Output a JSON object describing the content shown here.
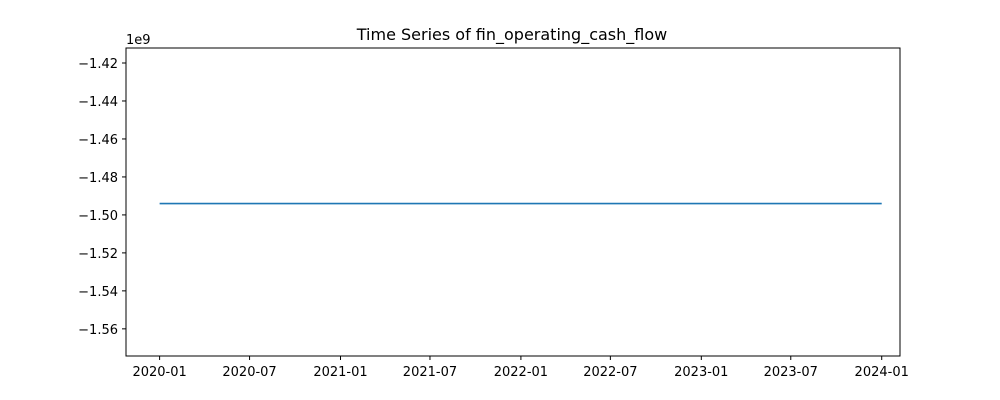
{
  "chart_data": {
    "type": "line",
    "title": "Time Series of fin_operating_cash_flow",
    "xlabel": "",
    "ylabel": "",
    "y_offset_text": "1e9",
    "xlim": [
      "2019-10-25",
      "2024-02-07"
    ],
    "ylim": [
      -1574300000.0,
      -1412100000.0
    ],
    "x_ticks": [
      {
        "value": "2020-01-01",
        "label": "2020-01"
      },
      {
        "value": "2020-07-01",
        "label": "2020-07"
      },
      {
        "value": "2021-01-01",
        "label": "2021-01"
      },
      {
        "value": "2021-07-01",
        "label": "2021-07"
      },
      {
        "value": "2022-01-01",
        "label": "2022-01"
      },
      {
        "value": "2022-07-01",
        "label": "2022-07"
      },
      {
        "value": "2023-01-01",
        "label": "2023-01"
      },
      {
        "value": "2023-07-01",
        "label": "2023-07"
      },
      {
        "value": "2024-01-01",
        "label": "2024-01"
      }
    ],
    "y_ticks": [
      {
        "value": -1420000000.0,
        "label": "−1.42"
      },
      {
        "value": -1440000000.0,
        "label": "−1.44"
      },
      {
        "value": -1460000000.0,
        "label": "−1.46"
      },
      {
        "value": -1480000000.0,
        "label": "−1.48"
      },
      {
        "value": -1500000000.0,
        "label": "−1.50"
      },
      {
        "value": -1520000000.0,
        "label": "−1.52"
      },
      {
        "value": -1540000000.0,
        "label": "−1.54"
      },
      {
        "value": -1560000000.0,
        "label": "−1.56"
      }
    ],
    "grid": false,
    "series": [
      {
        "color": "#1f77b4",
        "x": [
          "2020-01-01",
          "2024-01-01"
        ],
        "y": [
          -1494000000.0,
          -1494000000.0
        ]
      }
    ]
  }
}
